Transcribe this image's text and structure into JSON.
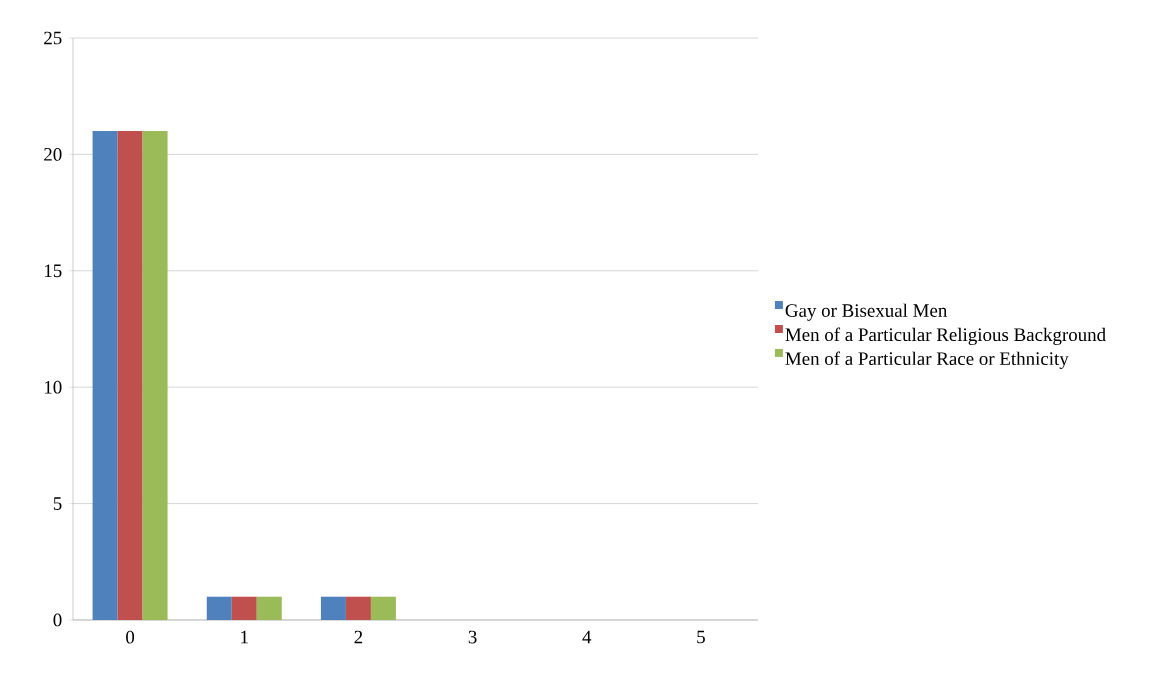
{
  "chart_data": {
    "type": "bar",
    "categories": [
      "0",
      "1",
      "2",
      "3",
      "4",
      "5"
    ],
    "series": [
      {
        "name": "Gay or Bisexual Men",
        "color": "#4f81bd",
        "values": [
          21,
          1,
          1,
          0,
          0,
          0
        ]
      },
      {
        "name": "Men of a Particular Religious Background",
        "color": "#c0504d",
        "values": [
          21,
          1,
          1,
          0,
          0,
          0
        ]
      },
      {
        "name": "Men of a Particular Race or Ethnicity",
        "color": "#9bbb59",
        "values": [
          21,
          1,
          1,
          0,
          0,
          0
        ]
      }
    ],
    "ylim": [
      0,
      25
    ],
    "yticks": [
      0,
      5,
      10,
      15,
      20,
      25
    ],
    "grid": "y",
    "legend": "right"
  }
}
